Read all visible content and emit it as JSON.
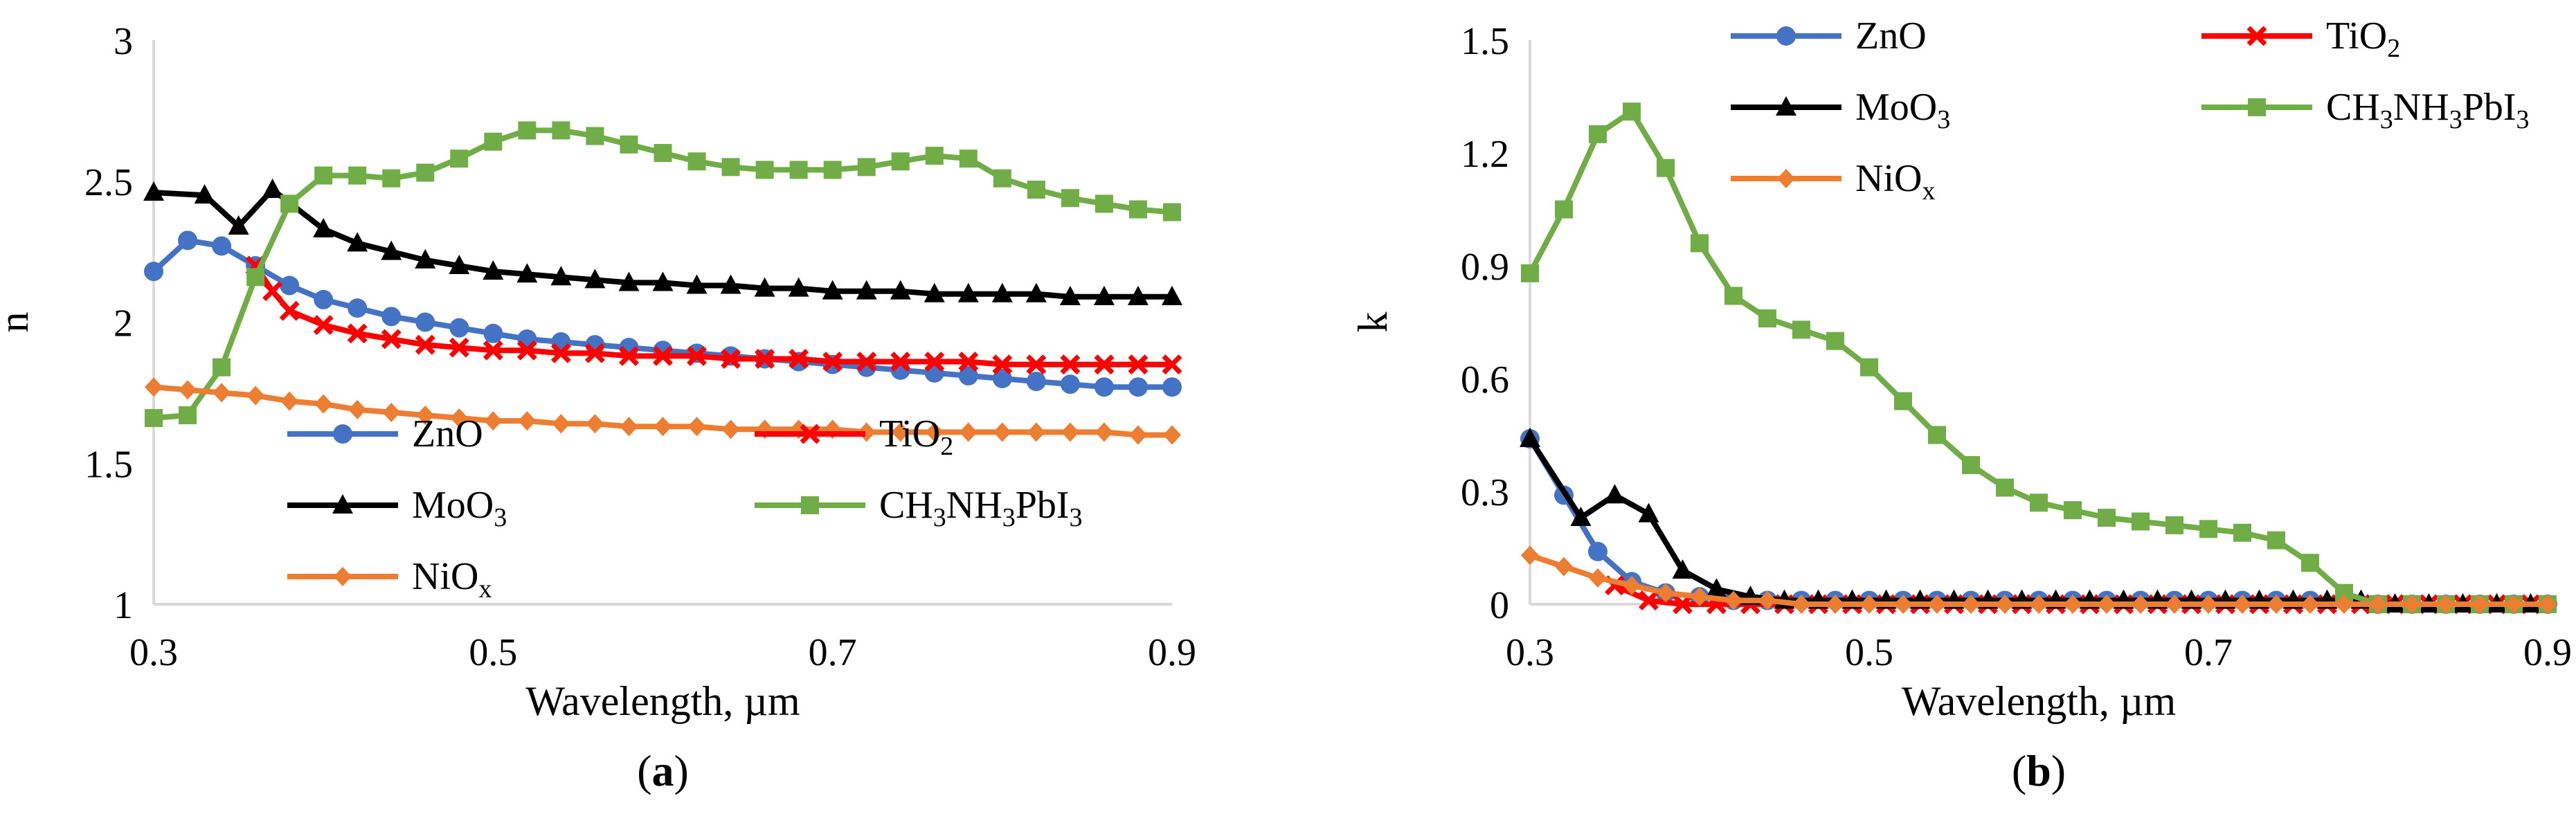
{
  "chart_data": [
    {
      "panel": "a",
      "panel_label": {
        "open": "(",
        "letter": "a",
        "close": ")"
      },
      "type": "line",
      "xlabel": "Wavelength, µm",
      "ylabel": "n",
      "xlim": [
        0.3,
        0.9
      ],
      "ylim": [
        1,
        3
      ],
      "xticks": [
        {
          "v": 0.3,
          "label": "0.3"
        },
        {
          "v": 0.5,
          "label": "0.5"
        },
        {
          "v": 0.7,
          "label": "0.7"
        },
        {
          "v": 0.9,
          "label": "0.9"
        }
      ],
      "yticks": [
        {
          "v": 1,
          "label": "1"
        },
        {
          "v": 1.5,
          "label": "1.5"
        },
        {
          "v": 2,
          "label": "2"
        },
        {
          "v": 2.5,
          "label": "2.5"
        },
        {
          "v": 3,
          "label": "3"
        }
      ],
      "legend_position": "bottom-center",
      "series": [
        {
          "name": "ZnO",
          "label_parts": [
            [
              "ZnO",
              ""
            ]
          ],
          "color": "#4472c4",
          "marker": "circle",
          "x": [
            0.3,
            0.32,
            0.34,
            0.36,
            0.38,
            0.4,
            0.42,
            0.44,
            0.46,
            0.48,
            0.5,
            0.52,
            0.54,
            0.56,
            0.58,
            0.6,
            0.62,
            0.64,
            0.66,
            0.68,
            0.7,
            0.72,
            0.74,
            0.76,
            0.78,
            0.8,
            0.82,
            0.84,
            0.86,
            0.88,
            0.9
          ],
          "y": [
            2.18,
            2.29,
            2.27,
            2.2,
            2.13,
            2.08,
            2.05,
            2.02,
            2.0,
            1.98,
            1.96,
            1.94,
            1.93,
            1.92,
            1.91,
            1.9,
            1.89,
            1.88,
            1.87,
            1.86,
            1.85,
            1.84,
            1.83,
            1.82,
            1.81,
            1.8,
            1.79,
            1.78,
            1.77,
            1.77,
            1.77
          ]
        },
        {
          "name": "TiO2",
          "label_parts": [
            [
              "TiO",
              ""
            ],
            [
              "2",
              "sub"
            ]
          ],
          "color": "#ff0000",
          "marker": "x",
          "x": [
            0.36,
            0.37,
            0.38,
            0.4,
            0.42,
            0.44,
            0.46,
            0.48,
            0.5,
            0.52,
            0.54,
            0.56,
            0.58,
            0.6,
            0.62,
            0.64,
            0.66,
            0.68,
            0.7,
            0.72,
            0.74,
            0.76,
            0.78,
            0.8,
            0.82,
            0.84,
            0.86,
            0.88,
            0.9
          ],
          "y": [
            2.2,
            2.11,
            2.04,
            1.99,
            1.96,
            1.94,
            1.92,
            1.91,
            1.9,
            1.9,
            1.89,
            1.89,
            1.88,
            1.88,
            1.88,
            1.87,
            1.87,
            1.87,
            1.86,
            1.86,
            1.86,
            1.86,
            1.86,
            1.85,
            1.85,
            1.85,
            1.85,
            1.85,
            1.85
          ]
        },
        {
          "name": "MoO3",
          "label_parts": [
            [
              "MoO",
              ""
            ],
            [
              "3",
              "sub"
            ]
          ],
          "color": "#000000",
          "marker": "triangle",
          "x": [
            0.3,
            0.33,
            0.35,
            0.37,
            0.4,
            0.42,
            0.44,
            0.46,
            0.48,
            0.5,
            0.52,
            0.54,
            0.56,
            0.58,
            0.6,
            0.62,
            0.64,
            0.66,
            0.68,
            0.7,
            0.72,
            0.74,
            0.76,
            0.78,
            0.8,
            0.82,
            0.84,
            0.86,
            0.88,
            0.9
          ],
          "y": [
            2.46,
            2.45,
            2.34,
            2.47,
            2.33,
            2.28,
            2.25,
            2.22,
            2.2,
            2.18,
            2.17,
            2.16,
            2.15,
            2.14,
            2.14,
            2.13,
            2.13,
            2.12,
            2.12,
            2.11,
            2.11,
            2.11,
            2.1,
            2.1,
            2.1,
            2.1,
            2.09,
            2.09,
            2.09,
            2.09
          ]
        },
        {
          "name": "CH3NH3PbI3",
          "label_parts": [
            [
              "CH",
              ""
            ],
            [
              "3",
              "sub"
            ],
            [
              "NH",
              ""
            ],
            [
              "3",
              "sub"
            ],
            [
              "PbI",
              ""
            ],
            [
              "3",
              "sub"
            ]
          ],
          "color": "#70ad47",
          "marker": "square",
          "x": [
            0.3,
            0.32,
            0.34,
            0.36,
            0.38,
            0.4,
            0.42,
            0.44,
            0.46,
            0.48,
            0.5,
            0.52,
            0.54,
            0.56,
            0.58,
            0.6,
            0.62,
            0.64,
            0.66,
            0.68,
            0.7,
            0.72,
            0.74,
            0.76,
            0.78,
            0.8,
            0.82,
            0.84,
            0.86,
            0.88,
            0.9
          ],
          "y": [
            1.66,
            1.67,
            1.84,
            2.16,
            2.42,
            2.52,
            2.52,
            2.51,
            2.53,
            2.58,
            2.64,
            2.68,
            2.68,
            2.66,
            2.63,
            2.6,
            2.57,
            2.55,
            2.54,
            2.54,
            2.54,
            2.55,
            2.57,
            2.59,
            2.58,
            2.51,
            2.47,
            2.44,
            2.42,
            2.4,
            2.39
          ]
        },
        {
          "name": "NiOx",
          "label_parts": [
            [
              "NiO",
              ""
            ],
            [
              "x",
              "sub"
            ]
          ],
          "color": "#ed7d31",
          "marker": "diamond",
          "x": [
            0.3,
            0.32,
            0.34,
            0.36,
            0.38,
            0.4,
            0.42,
            0.44,
            0.46,
            0.48,
            0.5,
            0.52,
            0.54,
            0.56,
            0.58,
            0.6,
            0.62,
            0.64,
            0.66,
            0.68,
            0.7,
            0.72,
            0.74,
            0.76,
            0.78,
            0.8,
            0.82,
            0.84,
            0.86,
            0.88,
            0.9
          ],
          "y": [
            1.77,
            1.76,
            1.75,
            1.74,
            1.72,
            1.71,
            1.69,
            1.68,
            1.67,
            1.66,
            1.65,
            1.65,
            1.64,
            1.64,
            1.63,
            1.63,
            1.63,
            1.62,
            1.62,
            1.62,
            1.62,
            1.61,
            1.61,
            1.61,
            1.61,
            1.61,
            1.61,
            1.61,
            1.61,
            1.6,
            1.6
          ]
        }
      ]
    },
    {
      "panel": "b",
      "panel_label": {
        "open": "(",
        "letter": "b",
        "close": ")"
      },
      "type": "line",
      "xlabel": "Wavelength, µm",
      "ylabel": "k",
      "xlim": [
        0.3,
        0.9
      ],
      "ylim": [
        0,
        1.5
      ],
      "xticks": [
        {
          "v": 0.3,
          "label": "0.3"
        },
        {
          "v": 0.5,
          "label": "0.5"
        },
        {
          "v": 0.7,
          "label": "0.7"
        },
        {
          "v": 0.9,
          "label": "0.9"
        }
      ],
      "yticks": [
        {
          "v": 0,
          "label": "0"
        },
        {
          "v": 0.3,
          "label": "0.3"
        },
        {
          "v": 0.6,
          "label": "0.6"
        },
        {
          "v": 0.9,
          "label": "0.9"
        },
        {
          "v": 1.2,
          "label": "1.2"
        },
        {
          "v": 1.5,
          "label": "1.5"
        }
      ],
      "legend_position": "top",
      "series": [
        {
          "name": "ZnO",
          "label_parts": [
            [
              "ZnO",
              ""
            ]
          ],
          "color": "#4472c4",
          "marker": "circle",
          "x": [
            0.3,
            0.32,
            0.34,
            0.36,
            0.38,
            0.4,
            0.42,
            0.44,
            0.46,
            0.48,
            0.5,
            0.52,
            0.54,
            0.56,
            0.58,
            0.6,
            0.62,
            0.64,
            0.66,
            0.68,
            0.7,
            0.72,
            0.74,
            0.76,
            0.78,
            0.8,
            0.82,
            0.84,
            0.86,
            0.88,
            0.9
          ],
          "y": [
            0.44,
            0.29,
            0.14,
            0.06,
            0.03,
            0.02,
            0.01,
            0.01,
            0.01,
            0.01,
            0.01,
            0.01,
            0.01,
            0.01,
            0.01,
            0.01,
            0.01,
            0.01,
            0.01,
            0.01,
            0.01,
            0.01,
            0.01,
            0.01,
            0.01,
            0.0,
            0.0,
            0.0,
            0.0,
            0.0,
            0.0
          ]
        },
        {
          "name": "TiO2",
          "label_parts": [
            [
              "TiO",
              ""
            ],
            [
              "2",
              "sub"
            ]
          ],
          "color": "#ff0000",
          "marker": "x",
          "x": [
            0.35,
            0.37,
            0.39,
            0.41,
            0.43,
            0.45,
            0.47,
            0.49,
            0.51,
            0.53,
            0.55,
            0.57,
            0.59,
            0.61,
            0.63,
            0.65,
            0.67,
            0.69,
            0.71,
            0.73,
            0.75,
            0.77,
            0.79,
            0.81,
            0.83,
            0.85,
            0.87,
            0.89
          ],
          "y": [
            0.05,
            0.01,
            0.0,
            0.0,
            0.0,
            0.0,
            0.0,
            0.0,
            0.0,
            0.0,
            0.0,
            0.0,
            0.0,
            0.0,
            0.0,
            0.0,
            0.0,
            0.0,
            0.0,
            0.0,
            0.0,
            0.0,
            0.0,
            0.0,
            0.0,
            0.0,
            0.0,
            0.0
          ]
        },
        {
          "name": "MoO3",
          "label_parts": [
            [
              "MoO",
              ""
            ],
            [
              "3",
              "sub"
            ]
          ],
          "color": "#000000",
          "marker": "triangle",
          "x": [
            0.3,
            0.33,
            0.35,
            0.37,
            0.39,
            0.41,
            0.43,
            0.45,
            0.47,
            0.49,
            0.51,
            0.53,
            0.55,
            0.57,
            0.59,
            0.61,
            0.63,
            0.65,
            0.67,
            0.69,
            0.71,
            0.73,
            0.75,
            0.77,
            0.79,
            0.81,
            0.83,
            0.85,
            0.87,
            0.89
          ],
          "y": [
            0.44,
            0.23,
            0.29,
            0.24,
            0.09,
            0.04,
            0.02,
            0.01,
            0.01,
            0.01,
            0.01,
            0.01,
            0.01,
            0.01,
            0.01,
            0.01,
            0.01,
            0.01,
            0.01,
            0.01,
            0.01,
            0.01,
            0.01,
            0.01,
            0.01,
            0.0,
            0.0,
            0.0,
            0.0,
            0.0
          ]
        },
        {
          "name": "CH3NH3PbI3",
          "label_parts": [
            [
              "CH",
              ""
            ],
            [
              "3",
              "sub"
            ],
            [
              "NH",
              ""
            ],
            [
              "3",
              "sub"
            ],
            [
              "PbI",
              ""
            ],
            [
              "3",
              "sub"
            ]
          ],
          "color": "#70ad47",
          "marker": "square",
          "x": [
            0.3,
            0.32,
            0.34,
            0.36,
            0.38,
            0.4,
            0.42,
            0.44,
            0.46,
            0.48,
            0.5,
            0.52,
            0.54,
            0.56,
            0.58,
            0.6,
            0.62,
            0.64,
            0.66,
            0.68,
            0.7,
            0.72,
            0.74,
            0.76,
            0.78,
            0.8,
            0.82,
            0.84,
            0.86,
            0.88,
            0.9
          ],
          "y": [
            0.88,
            1.05,
            1.25,
            1.31,
            1.16,
            0.96,
            0.82,
            0.76,
            0.73,
            0.7,
            0.63,
            0.54,
            0.45,
            0.37,
            0.31,
            0.27,
            0.25,
            0.23,
            0.22,
            0.21,
            0.2,
            0.19,
            0.17,
            0.11,
            0.03,
            0.0,
            0.0,
            0.0,
            0.0,
            0.0,
            0.0
          ]
        },
        {
          "name": "NiOx",
          "label_parts": [
            [
              "NiO",
              ""
            ],
            [
              "x",
              "sub"
            ]
          ],
          "color": "#ed7d31",
          "marker": "diamond",
          "x": [
            0.3,
            0.32,
            0.34,
            0.36,
            0.38,
            0.4,
            0.42,
            0.44,
            0.46,
            0.48,
            0.5,
            0.52,
            0.54,
            0.56,
            0.58,
            0.6,
            0.62,
            0.64,
            0.66,
            0.68,
            0.7,
            0.72,
            0.74,
            0.76,
            0.78,
            0.8,
            0.82,
            0.84,
            0.86,
            0.88,
            0.9
          ],
          "y": [
            0.13,
            0.1,
            0.07,
            0.05,
            0.03,
            0.02,
            0.01,
            0.01,
            0.0,
            0.0,
            0.0,
            0.0,
            0.0,
            0.0,
            0.0,
            0.0,
            0.0,
            0.0,
            0.0,
            0.0,
            0.0,
            0.0,
            0.0,
            0.0,
            0.0,
            0.0,
            0.0,
            0.0,
            0.0,
            0.0,
            0.0
          ]
        }
      ]
    }
  ]
}
